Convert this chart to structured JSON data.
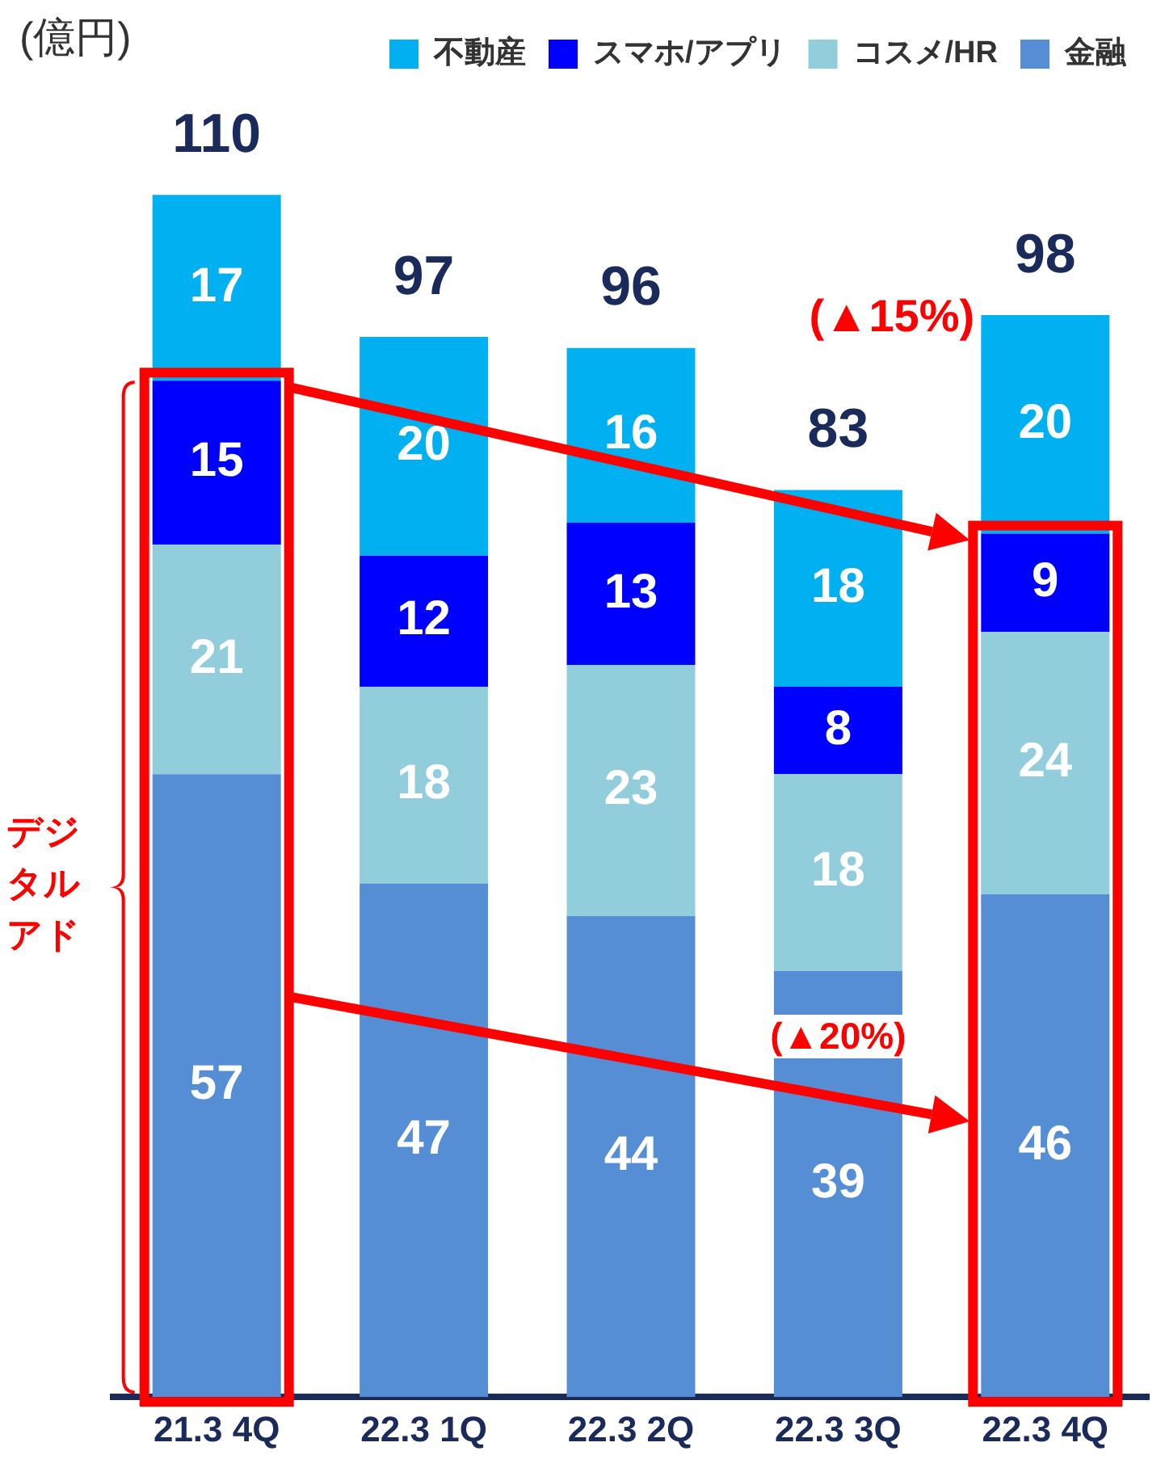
{
  "chart_data": {
    "type": "bar",
    "stacked": true,
    "ylabel": "(億円)",
    "categories": [
      "21.3 4Q",
      "22.3 1Q",
      "22.3 2Q",
      "22.3 3Q",
      "22.3 4Q"
    ],
    "series": [
      {
        "name": "金融",
        "color": "#558ed5",
        "values": [
          57,
          47,
          44,
          39,
          46
        ]
      },
      {
        "name": "コスメ/HR",
        "color": "#92cddc",
        "values": [
          21,
          18,
          23,
          18,
          24
        ]
      },
      {
        "name": "スマホ/アプリ",
        "color": "#0000ff",
        "values": [
          15,
          12,
          13,
          8,
          9
        ]
      },
      {
        "name": "不動産",
        "color": "#00b0f0",
        "values": [
          17,
          20,
          16,
          18,
          20
        ]
      }
    ],
    "totals": [
      "110",
      "97",
      "96",
      "83",
      "98"
    ],
    "data_labels": true,
    "legend": "top",
    "grid": false,
    "annotations": [
      "(▲15%)",
      "(▲20%)",
      "デジタルアド"
    ]
  }
}
